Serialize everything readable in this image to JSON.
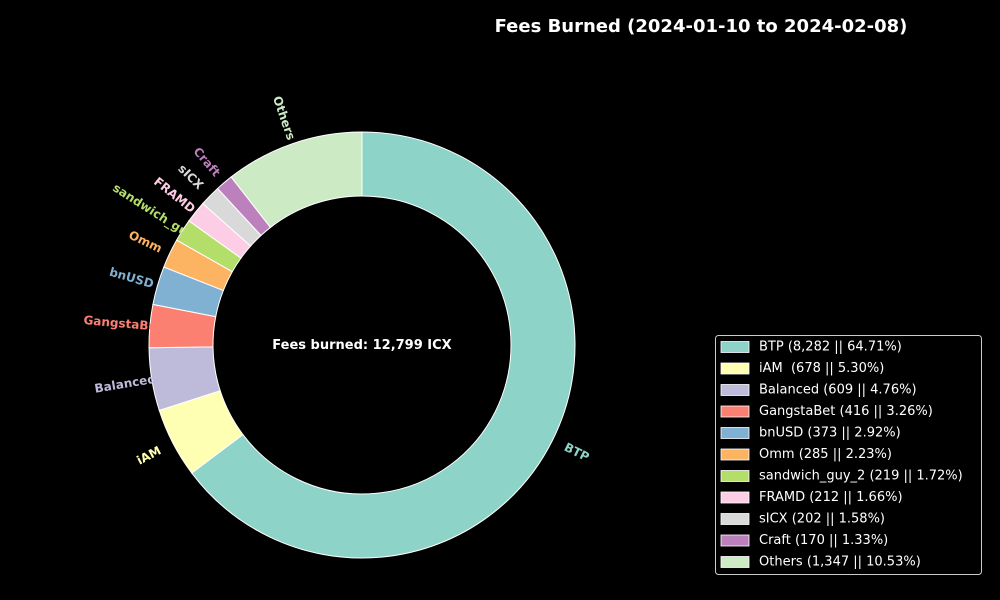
{
  "chart_data": {
    "type": "pie",
    "style": "donut",
    "title": "Fees Burned (2024-01-10 to 2024-02-08)",
    "center_text": "Fees burned: 12,799 ICX",
    "slices": [
      {
        "label": "BTP",
        "value": 8282,
        "percent": 64.71,
        "legend": "BTP (8,282 || 64.71%)",
        "color": "#8dd3c7"
      },
      {
        "label": "iAM",
        "value": 678,
        "percent": 5.3,
        "legend": "iAM  (678 || 5.30%)",
        "color": "#ffffb3"
      },
      {
        "label": "Balanced",
        "value": 609,
        "percent": 4.76,
        "legend": "Balanced (609 || 4.76%)",
        "color": "#bebada"
      },
      {
        "label": "GangstaBet",
        "value": 416,
        "percent": 3.26,
        "legend": "GangstaBet (416 || 3.26%)",
        "color": "#fb8072"
      },
      {
        "label": "bnUSD",
        "value": 373,
        "percent": 2.92,
        "legend": "bnUSD (373 || 2.92%)",
        "color": "#80b1d3"
      },
      {
        "label": "Omm",
        "value": 285,
        "percent": 2.23,
        "legend": "Omm (285 || 2.23%)",
        "color": "#fdb462"
      },
      {
        "label": "sandwich_guy_2",
        "value": 219,
        "percent": 1.72,
        "legend": "sandwich_guy_2 (219 || 1.72%)",
        "color": "#b3de69"
      },
      {
        "label": "FRAMD",
        "value": 212,
        "percent": 1.66,
        "legend": "FRAMD (212 || 1.66%)",
        "color": "#fccde5"
      },
      {
        "label": "sICX",
        "value": 202,
        "percent": 1.58,
        "legend": "sICX (202 || 1.58%)",
        "color": "#d9d9d9"
      },
      {
        "label": "Craft",
        "value": 170,
        "percent": 1.33,
        "legend": "Craft (170 || 1.33%)",
        "color": "#bc80bd"
      },
      {
        "label": "Others",
        "value": 1347,
        "percent": 10.53,
        "legend": "Others (1,347 || 10.53%)",
        "color": "#ccebc5"
      }
    ],
    "legend_position": "lower-right",
    "background": "#000000"
  }
}
